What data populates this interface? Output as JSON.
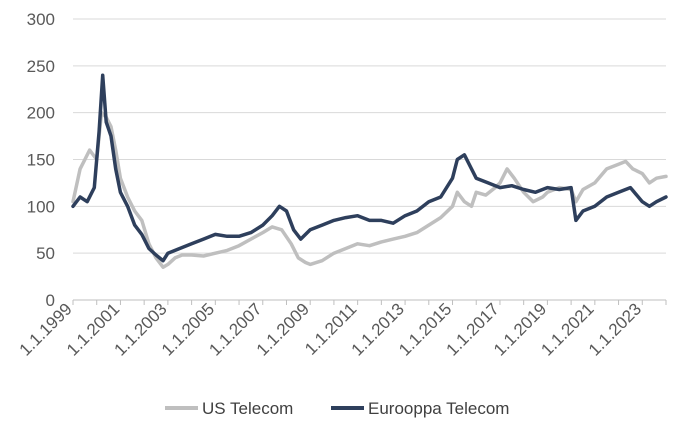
{
  "chart_data": {
    "type": "line",
    "title": "",
    "xlabel": "",
    "ylabel": "",
    "ylim": [
      0,
      300
    ],
    "yticks": [
      "0",
      "50",
      "100",
      "150",
      "200",
      "250",
      "300"
    ],
    "xlim": [
      1999.0,
      2024.0
    ],
    "xtick_labels": [
      "1.1.1999",
      "1.1.2001",
      "1.1.2003",
      "1.1.2005",
      "1.1.2007",
      "1.1.2009",
      "1.1.2011",
      "1.1.2013",
      "1.1.2015",
      "1.1.2017",
      "1.1.2019",
      "1.1.2021",
      "1.1.2023"
    ],
    "grid": "horizontal",
    "legend_position": "bottom",
    "series": [
      {
        "name": "US Telecom",
        "color": "#bfbfbf",
        "x": [
          1999.0,
          1999.3,
          1999.5,
          1999.7,
          2000.0,
          2000.2,
          2000.4,
          2000.6,
          2000.8,
          2001.0,
          2001.3,
          2001.6,
          2001.9,
          2002.2,
          2002.5,
          2002.8,
          2003.0,
          2003.3,
          2003.6,
          2004.0,
          2004.5,
          2005.0,
          2005.5,
          2006.0,
          2006.5,
          2007.0,
          2007.4,
          2007.8,
          2008.2,
          2008.5,
          2008.8,
          2009.0,
          2009.5,
          2010.0,
          2010.5,
          2011.0,
          2011.5,
          2012.0,
          2012.5,
          2013.0,
          2013.5,
          2014.0,
          2014.5,
          2015.0,
          2015.2,
          2015.5,
          2015.8,
          2016.0,
          2016.4,
          2016.8,
          2017.0,
          2017.3,
          2017.6,
          2018.0,
          2018.4,
          2018.8,
          2019.0,
          2019.5,
          2020.0,
          2020.2,
          2020.5,
          2021.0,
          2021.5,
          2022.0,
          2022.3,
          2022.6,
          2023.0,
          2023.3,
          2023.6,
          2024.0
        ],
        "y": [
          105,
          140,
          150,
          160,
          150,
          200,
          195,
          185,
          160,
          130,
          110,
          95,
          85,
          60,
          45,
          35,
          38,
          45,
          48,
          48,
          47,
          50,
          53,
          58,
          65,
          72,
          78,
          75,
          60,
          45,
          40,
          38,
          42,
          50,
          55,
          60,
          58,
          62,
          65,
          68,
          72,
          80,
          88,
          100,
          115,
          105,
          100,
          115,
          112,
          120,
          125,
          140,
          130,
          115,
          105,
          110,
          115,
          120,
          118,
          105,
          118,
          125,
          140,
          145,
          148,
          140,
          135,
          125,
          130,
          132
        ]
      },
      {
        "name": "Eurooppa Telecom",
        "color": "#2e3f5c",
        "x": [
          1999.0,
          1999.3,
          1999.6,
          1999.9,
          2000.1,
          2000.25,
          2000.4,
          2000.6,
          2000.8,
          2001.0,
          2001.3,
          2001.6,
          2001.9,
          2002.2,
          2002.5,
          2002.8,
          2003.0,
          2003.5,
          2004.0,
          2004.5,
          2005.0,
          2005.5,
          2006.0,
          2006.5,
          2007.0,
          2007.4,
          2007.7,
          2008.0,
          2008.3,
          2008.6,
          2009.0,
          2009.5,
          2010.0,
          2010.5,
          2011.0,
          2011.5,
          2012.0,
          2012.5,
          2013.0,
          2013.5,
          2014.0,
          2014.5,
          2015.0,
          2015.2,
          2015.5,
          2015.8,
          2016.0,
          2016.5,
          2017.0,
          2017.5,
          2018.0,
          2018.5,
          2019.0,
          2019.5,
          2020.0,
          2020.2,
          2020.5,
          2021.0,
          2021.5,
          2022.0,
          2022.5,
          2023.0,
          2023.3,
          2023.6,
          2024.0
        ],
        "y": [
          100,
          110,
          105,
          120,
          180,
          240,
          190,
          175,
          140,
          115,
          100,
          80,
          70,
          55,
          48,
          42,
          50,
          55,
          60,
          65,
          70,
          68,
          68,
          72,
          80,
          90,
          100,
          95,
          75,
          65,
          75,
          80,
          85,
          88,
          90,
          85,
          85,
          82,
          90,
          95,
          105,
          110,
          130,
          150,
          155,
          140,
          130,
          125,
          120,
          122,
          118,
          115,
          120,
          118,
          120,
          85,
          95,
          100,
          110,
          115,
          120,
          105,
          100,
          105,
          110
        ]
      }
    ]
  }
}
